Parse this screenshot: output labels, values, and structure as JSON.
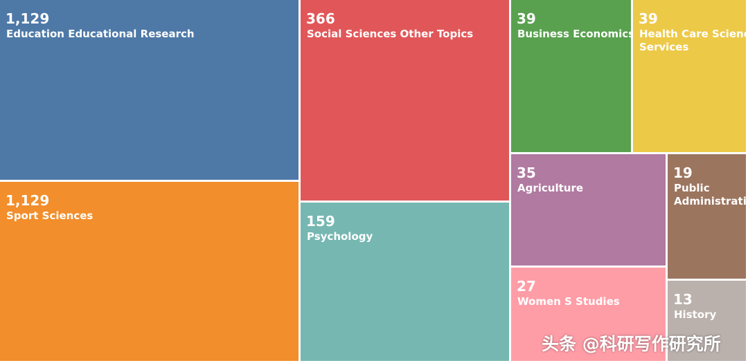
{
  "chart_data": {
    "type": "treemap",
    "title": "",
    "items": [
      {
        "value": 1129,
        "value_label": "1,129",
        "label": "Education Educational Research",
        "color": "#4e79a7"
      },
      {
        "value": 1129,
        "value_label": "1,129",
        "label": "Sport Sciences",
        "color": "#f28e2b"
      },
      {
        "value": 366,
        "value_label": "366",
        "label": "Social Sciences Other Topics",
        "color": "#e15759"
      },
      {
        "value": 159,
        "value_label": "159",
        "label": "Psychology",
        "color": "#76b7b2"
      },
      {
        "value": 39,
        "value_label": "39",
        "label": "Business Economics",
        "color": "#59a14f"
      },
      {
        "value": 39,
        "value_label": "39",
        "label": "Health Care Sciences\nServices",
        "color": "#edc948"
      },
      {
        "value": 35,
        "value_label": "35",
        "label": "Agriculture",
        "color": "#b07aa1"
      },
      {
        "value": 19,
        "value_label": "19",
        "label": "Public\nAdministration",
        "color": "#9c755f"
      },
      {
        "value": 27,
        "value_label": "27",
        "label": "Women S Studies",
        "color": "#ff9da7"
      },
      {
        "value": 13,
        "value_label": "13",
        "label": "History",
        "color": "#bab0ac"
      }
    ]
  },
  "watermark": "头条 @科研写作研究所"
}
